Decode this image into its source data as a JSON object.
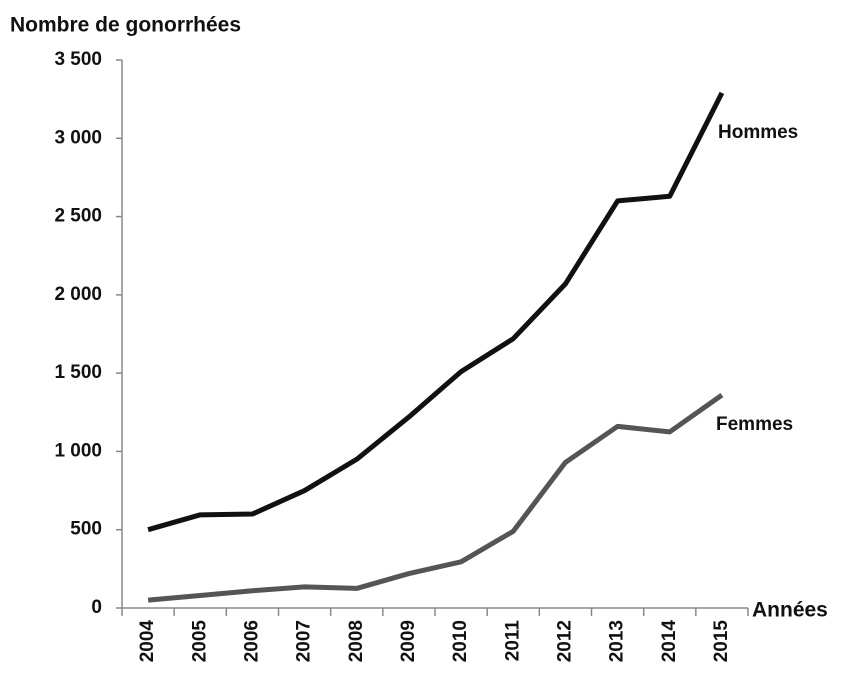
{
  "chart_data": {
    "type": "line",
    "title": "Nombre de gonorrhées",
    "x_label": "Années",
    "categories": [
      "2004",
      "2005",
      "2006",
      "2007",
      "2008",
      "2009",
      "2010",
      "2011",
      "2012",
      "2013",
      "2014",
      "2015"
    ],
    "series": [
      {
        "name": "Hommes",
        "color": "#111111",
        "values": [
          500,
          595,
          600,
          750,
          950,
          1220,
          1510,
          1720,
          2070,
          2600,
          2630,
          3290
        ]
      },
      {
        "name": "Femmes",
        "color": "#555555",
        "values": [
          50,
          80,
          110,
          135,
          125,
          220,
          295,
          490,
          930,
          1160,
          1125,
          1360
        ]
      }
    ],
    "ylim": [
      0,
      3500
    ],
    "yticks": [
      0,
      500,
      {
        "value": 1000,
        "label": "1 000"
      },
      {
        "value": 1500,
        "label": "1 500"
      },
      {
        "value": 2000,
        "label": "2 000"
      },
      {
        "value": 2500,
        "label": "2 500"
      },
      {
        "value": 3000,
        "label": "3 000"
      },
      {
        "value": 3500,
        "label": "3 500"
      }
    ],
    "grid": false
  }
}
